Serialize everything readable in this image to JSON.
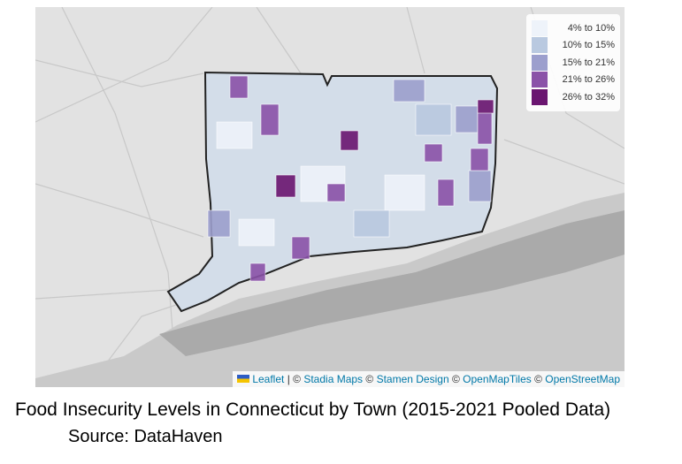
{
  "map": {
    "legend": {
      "items": [
        {
          "label": "4% to 10%",
          "color": "#eef3fa"
        },
        {
          "label": "10% to 15%",
          "color": "#b9c9e0"
        },
        {
          "label": "15% to 21%",
          "color": "#9c9fcd"
        },
        {
          "label": "21% to 26%",
          "color": "#8a52a8"
        },
        {
          "label": "26% to 32%",
          "color": "#6a1570"
        }
      ]
    },
    "attribution": {
      "leaflet": "Leaflet",
      "separator": "| ©",
      "credits": [
        {
          "link": "Stadia Maps",
          "suffix": "©"
        },
        {
          "link": "Stamen Design",
          "suffix": "©"
        },
        {
          "link": "OpenMapTiles",
          "suffix": "©"
        },
        {
          "link": "OpenStreetMap",
          "suffix": ""
        }
      ]
    }
  },
  "caption": {
    "title": "Food Insecurity Levels in Connecticut by Town (2015-2021 Pooled Data)",
    "source": "Source: DataHaven"
  }
}
